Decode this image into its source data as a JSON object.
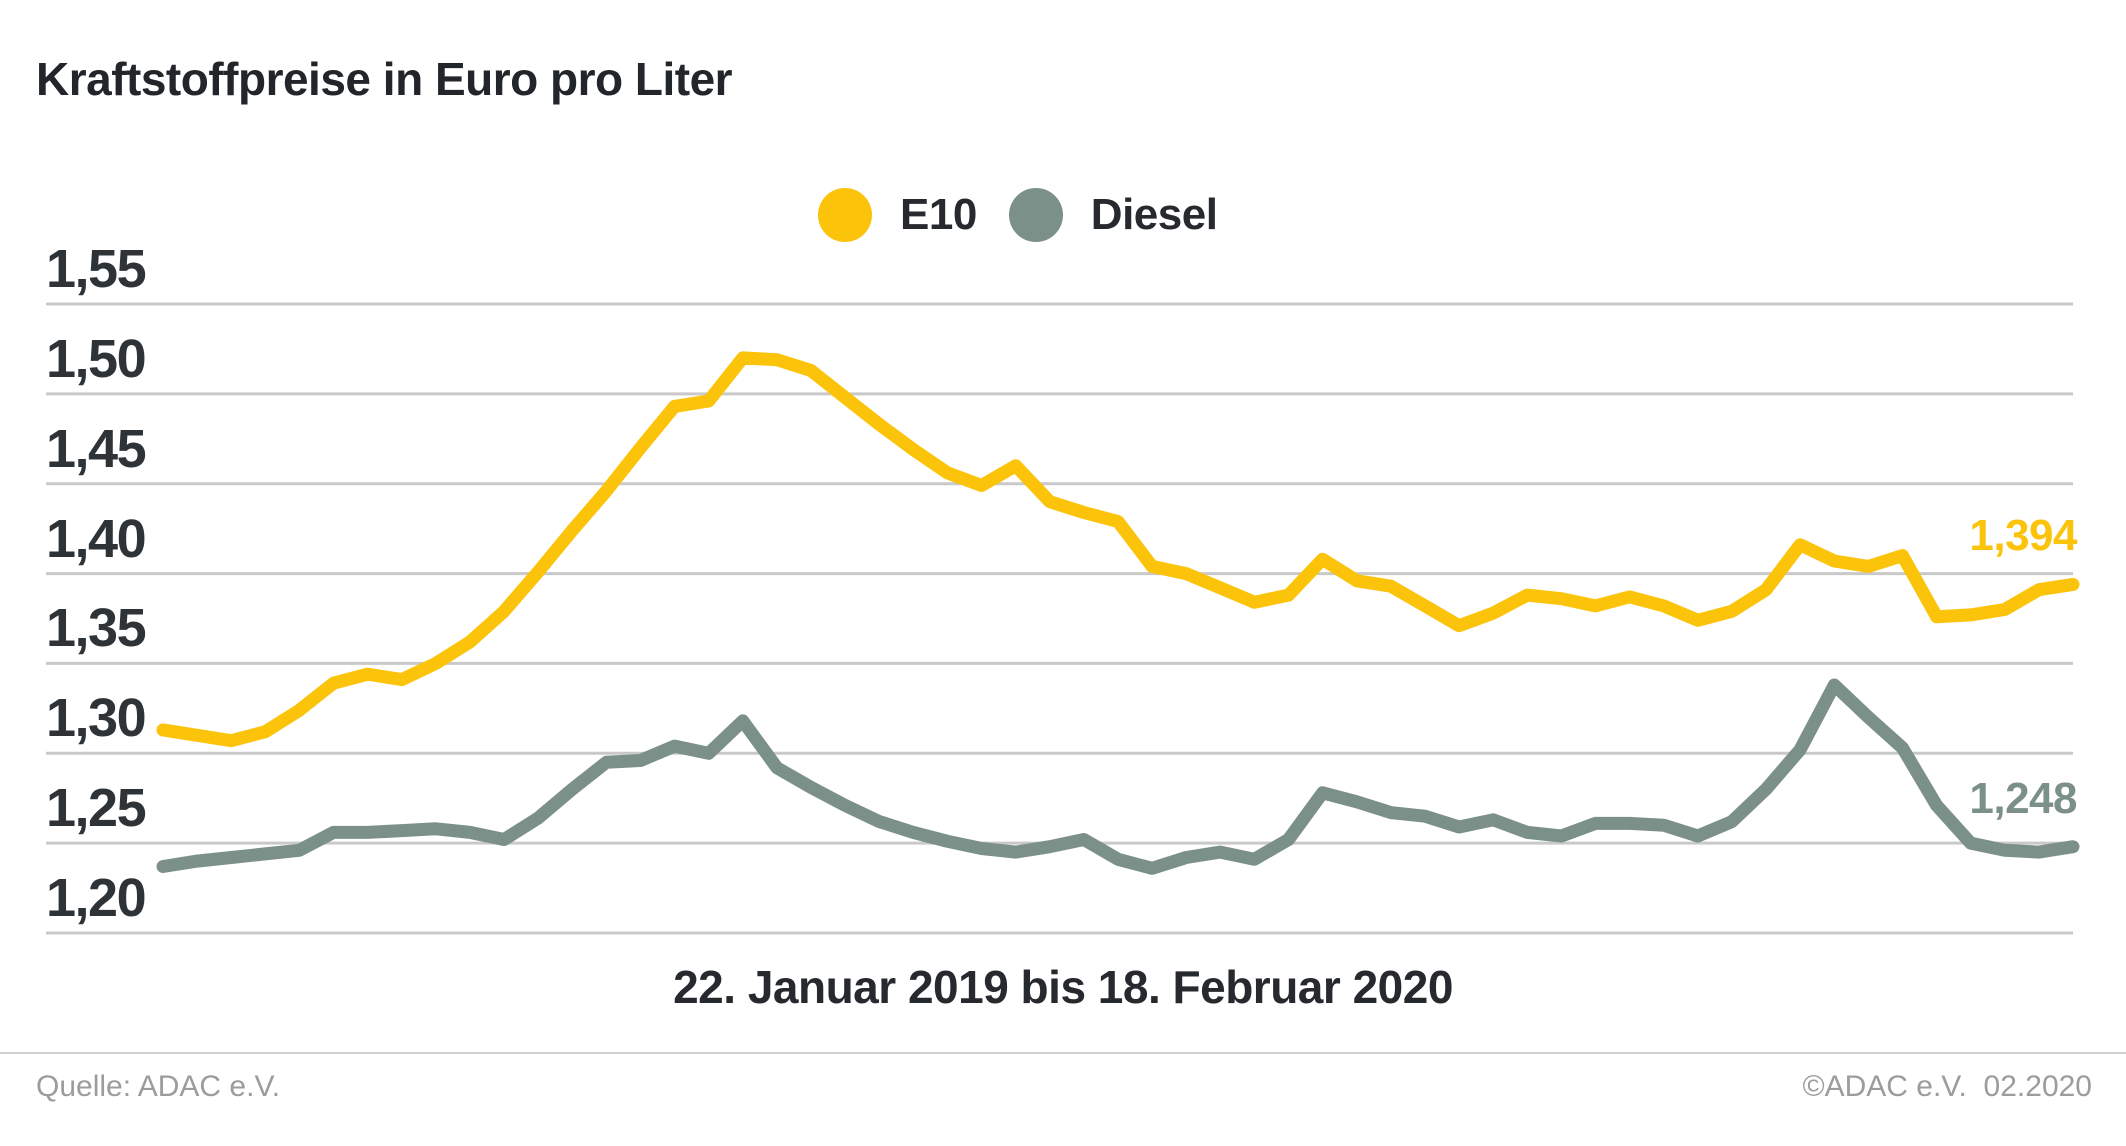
{
  "header": {
    "title": "Kraftstoffpreise in Euro pro Liter"
  },
  "footer": {
    "source": "Quelle: ADAC e.V.",
    "copyright": "©ADAC e.V.  02.2020"
  },
  "chart_data": {
    "type": "line",
    "xlabel": "22. Januar 2019 bis 18. Februar 2020",
    "ylim": [
      1.2,
      1.55
    ],
    "grid": "horizontal",
    "legend_position": "top-center",
    "y_ticks": [
      {
        "label": "1,55",
        "value": 1.55
      },
      {
        "label": "1,50",
        "value": 1.5
      },
      {
        "label": "1,45",
        "value": 1.45
      },
      {
        "label": "1,40",
        "value": 1.4
      },
      {
        "label": "1,35",
        "value": 1.35
      },
      {
        "label": "1,30",
        "value": 1.3
      },
      {
        "label": "1,25",
        "value": 1.25
      },
      {
        "label": "1,20",
        "value": 1.2
      }
    ],
    "colors": {
      "grid": "#c9c9c9",
      "e10": "#fcc30b",
      "diesel": "#7c908a"
    },
    "series": [
      {
        "name": "E10",
        "color": "#fcc30b",
        "end_label": "1,394",
        "values": [
          1.313,
          1.31,
          1.307,
          1.312,
          1.324,
          1.339,
          1.344,
          1.341,
          1.35,
          1.362,
          1.379,
          1.401,
          1.424,
          1.446,
          1.47,
          1.493,
          1.496,
          1.52,
          1.519,
          1.513,
          1.498,
          1.483,
          1.469,
          1.456,
          1.449,
          1.46,
          1.44,
          1.434,
          1.429,
          1.404,
          1.4,
          1.392,
          1.384,
          1.388,
          1.408,
          1.396,
          1.393,
          1.382,
          1.371,
          1.378,
          1.388,
          1.386,
          1.382,
          1.387,
          1.382,
          1.374,
          1.379,
          1.391,
          1.416,
          1.407,
          1.404,
          1.41,
          1.376,
          1.377,
          1.38,
          1.391,
          1.394
        ]
      },
      {
        "name": "Diesel",
        "color": "#7c908a",
        "end_label": "1,248",
        "values": [
          1.237,
          1.24,
          1.242,
          1.244,
          1.246,
          1.256,
          1.256,
          1.257,
          1.258,
          1.256,
          1.252,
          1.264,
          1.28,
          1.295,
          1.296,
          1.304,
          1.3,
          1.318,
          1.292,
          1.281,
          1.271,
          1.262,
          1.256,
          1.251,
          1.247,
          1.245,
          1.248,
          1.252,
          1.241,
          1.236,
          1.242,
          1.245,
          1.241,
          1.252,
          1.278,
          1.273,
          1.267,
          1.265,
          1.259,
          1.263,
          1.256,
          1.254,
          1.261,
          1.261,
          1.26,
          1.254,
          1.262,
          1.28,
          1.302,
          1.338,
          1.32,
          1.303,
          1.271,
          1.25,
          1.246,
          1.245,
          1.248
        ]
      }
    ]
  }
}
